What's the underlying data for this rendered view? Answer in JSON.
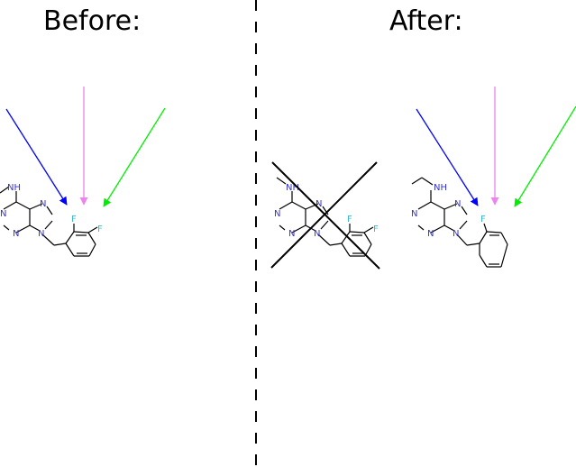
{
  "panels": {
    "before": {
      "title": "Before:"
    },
    "after": {
      "title": "After:"
    }
  },
  "atoms": {
    "nitrogen": "N",
    "nh": "NH",
    "fluorine": "F"
  },
  "colors": {
    "arrow_blue": "#0000ff",
    "arrow_violet": "#ee82ee",
    "arrow_green": "#00ee00",
    "nitrogen": "#3333cc",
    "fluorine": "#33bbcc",
    "bond": "#000000",
    "divider": "#000000"
  }
}
